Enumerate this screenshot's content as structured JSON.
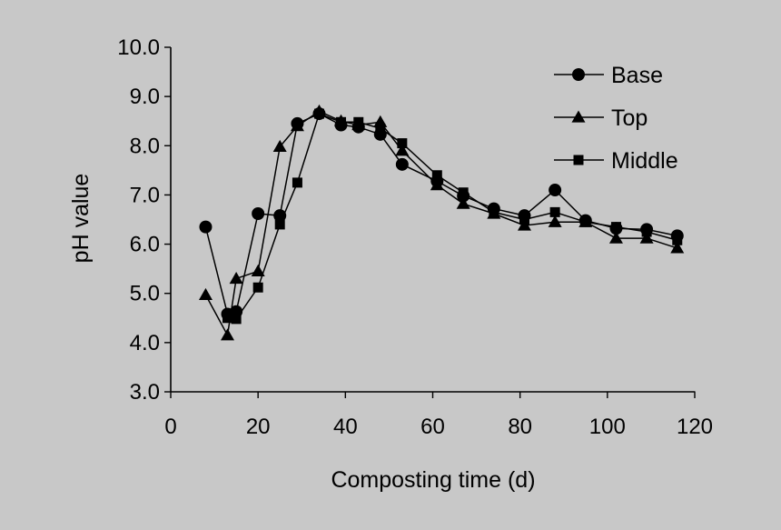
{
  "chart_data": {
    "type": "line",
    "title": "",
    "xlabel": "Composting time (d)",
    "ylabel": "pH value",
    "xlim": [
      0,
      120
    ],
    "ylim": [
      3.0,
      10.0
    ],
    "x_ticks": [
      0,
      20,
      40,
      60,
      80,
      100,
      120
    ],
    "x_tick_labels": [
      "0",
      "20",
      "40",
      "60",
      "80",
      "100",
      "120"
    ],
    "y_ticks": [
      3.0,
      4.0,
      5.0,
      6.0,
      7.0,
      8.0,
      9.0,
      10.0
    ],
    "y_tick_labels": [
      "3.0",
      "4.0",
      "5.0",
      "6.0",
      "7.0",
      "8.0",
      "9.0",
      "10.0"
    ],
    "grid": false,
    "legend_position": "top-right",
    "series": [
      {
        "name": "Base",
        "marker": "circle",
        "x": [
          8,
          13,
          15,
          20,
          25,
          29,
          34,
          39,
          43,
          48,
          53,
          61,
          67,
          74,
          81,
          88,
          95,
          102,
          109,
          116
        ],
        "y": [
          6.35,
          4.58,
          4.63,
          6.62,
          6.58,
          8.45,
          8.65,
          8.42,
          8.38,
          8.23,
          7.62,
          7.28,
          6.98,
          6.72,
          6.58,
          7.1,
          6.48,
          6.32,
          6.3,
          6.17
        ]
      },
      {
        "name": "Top",
        "marker": "triangle",
        "x": [
          8,
          13,
          15,
          20,
          25,
          29,
          34,
          39,
          43,
          48,
          53,
          61,
          67,
          74,
          81,
          88,
          95,
          102,
          109,
          116
        ],
        "y": [
          4.97,
          4.15,
          5.3,
          5.45,
          7.98,
          8.4,
          8.7,
          8.5,
          8.42,
          8.48,
          7.9,
          7.2,
          6.82,
          6.62,
          6.38,
          6.45,
          6.45,
          6.12,
          6.12,
          5.92
        ]
      },
      {
        "name": "Middle",
        "marker": "square",
        "x": [
          13,
          15,
          20,
          25,
          29,
          34,
          39,
          43,
          48,
          53,
          61,
          67,
          74,
          81,
          88,
          95,
          102,
          109,
          116
        ],
        "y": [
          4.5,
          4.48,
          5.12,
          6.4,
          7.25,
          8.65,
          8.48,
          8.48,
          8.35,
          8.05,
          7.4,
          7.05,
          6.65,
          6.5,
          6.65,
          6.45,
          6.35,
          6.25,
          6.08
        ]
      }
    ]
  }
}
